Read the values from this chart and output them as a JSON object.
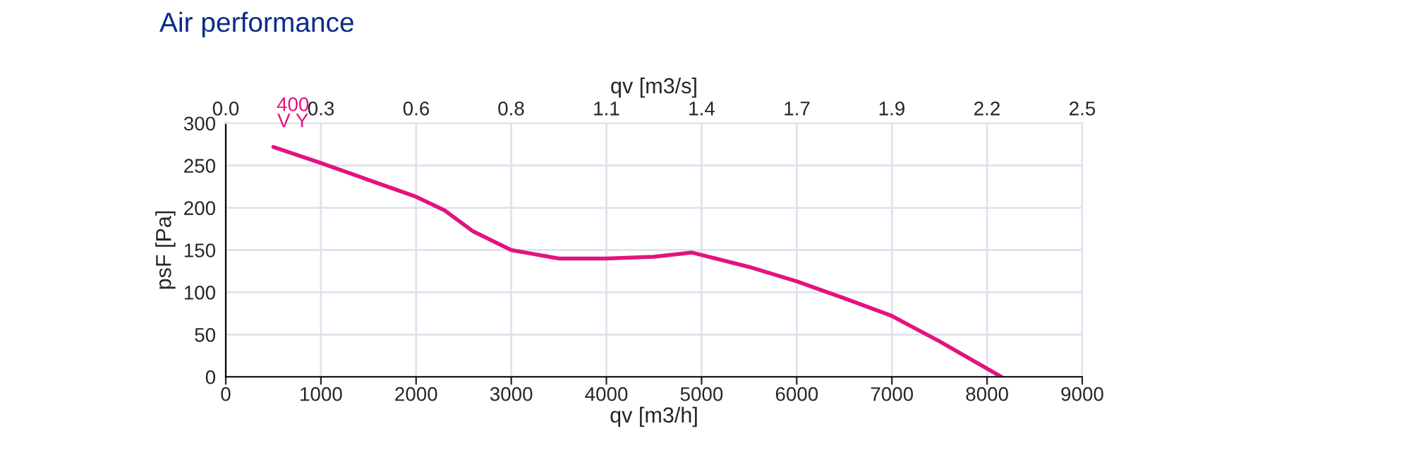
{
  "chart_data": {
    "type": "line",
    "title": "Air performance",
    "xlabel": "qv [m3/h]",
    "x2label": "qv [m3/s]",
    "ylabel": "psF [Pa]",
    "xlim": [
      0,
      9000
    ],
    "xticks": [
      0,
      1000,
      2000,
      3000,
      4000,
      5000,
      6000,
      7000,
      8000,
      9000
    ],
    "x2lim": [
      0,
      2.5
    ],
    "x2ticks": [
      {
        "value": 0,
        "label": "0.0"
      },
      {
        "value": 0.278,
        "label": "0.3"
      },
      {
        "value": 0.556,
        "label": "0.6"
      },
      {
        "value": 0.833,
        "label": "0.8"
      },
      {
        "value": 1.111,
        "label": "1.1"
      },
      {
        "value": 1.389,
        "label": "1.4"
      },
      {
        "value": 1.667,
        "label": "1.7"
      },
      {
        "value": 1.944,
        "label": "1.9"
      },
      {
        "value": 2.222,
        "label": "2.2"
      },
      2.5
    ],
    "ylim": [
      0,
      300
    ],
    "yticks": [
      0,
      50,
      100,
      150,
      200,
      250,
      300
    ],
    "grid": true,
    "legend": false,
    "marker": "none",
    "line_style": "solid",
    "series": [
      {
        "name": "400\nV Y",
        "color": "#e2137f",
        "x": [
          500,
          1000,
          1500,
          2000,
          2300,
          2600,
          3000,
          3500,
          4000,
          4500,
          4900,
          5500,
          6000,
          6500,
          7000,
          7500,
          8150
        ],
        "values": [
          272,
          253,
          233,
          213,
          197,
          172,
          150,
          140,
          140,
          142,
          147,
          130,
          113,
          93,
          72,
          42,
          0
        ]
      }
    ]
  }
}
